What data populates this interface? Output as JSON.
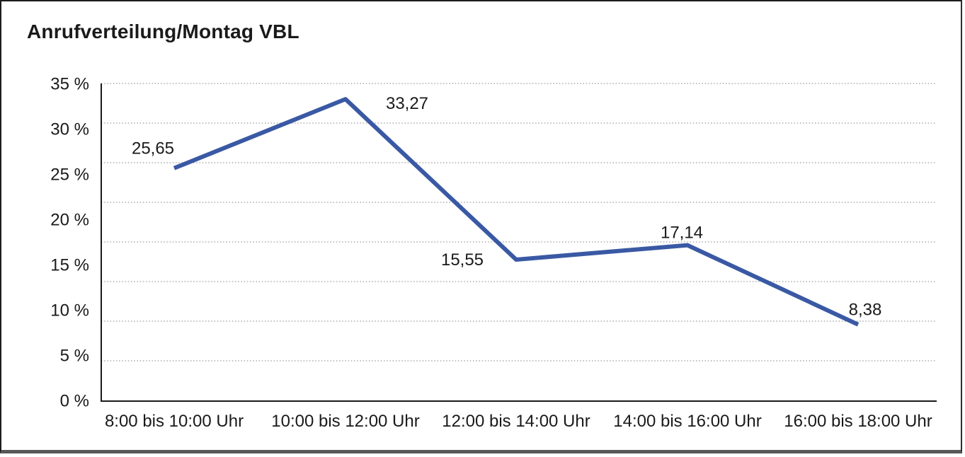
{
  "title": "Anrufverteilung/Montag VBL",
  "chart_data": {
    "type": "line",
    "title": "Anrufverteilung/Montag VBL",
    "categories": [
      "8:00 bis 10:00 Uhr",
      "10:00 bis 12:00 Uhr",
      "12:00 bis 14:00 Uhr",
      "14:00 bis 16:00 Uhr",
      "16:00 bis 18:00 Uhr"
    ],
    "values": [
      25.65,
      33.27,
      15.55,
      17.14,
      8.38
    ],
    "point_labels": [
      "25,65",
      "33,27",
      "15,55",
      "17,14",
      "8,38"
    ],
    "y_tick_labels": [
      "35 %",
      "30 %",
      "25 %",
      "20 %",
      "15 %",
      "10 %",
      "5 %",
      "0 %"
    ],
    "xlabel": "",
    "ylabel": "",
    "ylim": [
      0,
      35
    ],
    "grid": "horizontal-dotted",
    "legend": "none",
    "line_color": "#3A59A4",
    "text_color": "#1A1A1A",
    "grid_color": "#808080",
    "axis_color": "#1A1A1A"
  }
}
